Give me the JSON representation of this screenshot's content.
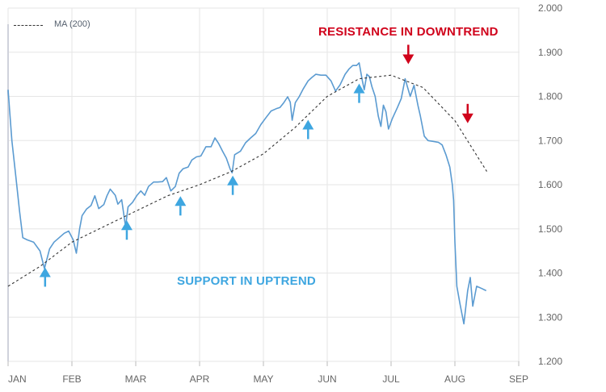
{
  "legend": {
    "ma_label": "MA (200)"
  },
  "annotations": {
    "resistance": "RESISTANCE IN DOWNTREND",
    "support": "SUPPORT IN UPTREND"
  },
  "colors": {
    "price_line": "#5b9bd1",
    "ma_line": "#333333",
    "up_arrow": "#3ea6e0",
    "down_arrow": "#d0021b",
    "grid": "#e6e6e6",
    "support_text": "#3ea6e0",
    "resistance_text": "#d0021b"
  },
  "chart_data": {
    "type": "line",
    "title": "",
    "xlabel": "",
    "ylabel": "",
    "ylim": [
      1.2,
      2.0
    ],
    "yticks": [
      "2.000",
      "1.900",
      "1.800",
      "1.700",
      "1.600",
      "1.500",
      "1.400",
      "1.300",
      "1.200"
    ],
    "grid": true,
    "legend_position": "top-left",
    "x_categories": [
      "JAN",
      "FEB",
      "MAR",
      "APR",
      "MAY",
      "JUN",
      "JUL",
      "AUG",
      "SEP"
    ],
    "series": [
      {
        "name": "",
        "style": "solid",
        "points": [
          [
            0.0,
            1.815
          ],
          [
            0.06,
            1.7
          ],
          [
            0.12,
            1.62
          ],
          [
            0.18,
            1.54
          ],
          [
            0.23,
            1.48
          ],
          [
            0.3,
            1.475
          ],
          [
            0.4,
            1.47
          ],
          [
            0.5,
            1.45
          ],
          [
            0.57,
            1.41
          ],
          [
            0.65,
            1.455
          ],
          [
            0.72,
            1.47
          ],
          [
            0.8,
            1.48
          ],
          [
            0.88,
            1.49
          ],
          [
            0.95,
            1.495
          ],
          [
            1.02,
            1.475
          ],
          [
            1.07,
            1.445
          ],
          [
            1.12,
            1.5
          ],
          [
            1.16,
            1.53
          ],
          [
            1.23,
            1.545
          ],
          [
            1.3,
            1.553
          ],
          [
            1.36,
            1.575
          ],
          [
            1.42,
            1.546
          ],
          [
            1.5,
            1.555
          ],
          [
            1.55,
            1.575
          ],
          [
            1.6,
            1.59
          ],
          [
            1.68,
            1.576
          ],
          [
            1.72,
            1.556
          ],
          [
            1.78,
            1.566
          ],
          [
            1.84,
            1.505
          ],
          [
            1.88,
            1.55
          ],
          [
            1.95,
            1.56
          ],
          [
            2.02,
            1.576
          ],
          [
            2.08,
            1.586
          ],
          [
            2.14,
            1.576
          ],
          [
            2.2,
            1.596
          ],
          [
            2.28,
            1.606
          ],
          [
            2.34,
            1.606
          ],
          [
            2.42,
            1.607
          ],
          [
            2.48,
            1.616
          ],
          [
            2.55,
            1.586
          ],
          [
            2.62,
            1.596
          ],
          [
            2.68,
            1.626
          ],
          [
            2.74,
            1.636
          ],
          [
            2.82,
            1.64
          ],
          [
            2.88,
            1.656
          ],
          [
            2.95,
            1.663
          ],
          [
            3.02,
            1.665
          ],
          [
            3.1,
            1.686
          ],
          [
            3.18,
            1.686
          ],
          [
            3.24,
            1.706
          ],
          [
            3.3,
            1.693
          ],
          [
            3.36,
            1.676
          ],
          [
            3.42,
            1.66
          ],
          [
            3.48,
            1.635
          ],
          [
            3.51,
            1.627
          ],
          [
            3.55,
            1.668
          ],
          [
            3.64,
            1.676
          ],
          [
            3.72,
            1.695
          ],
          [
            3.8,
            1.706
          ],
          [
            3.88,
            1.716
          ],
          [
            3.96,
            1.736
          ],
          [
            4.04,
            1.752
          ],
          [
            4.12,
            1.767
          ],
          [
            4.2,
            1.772
          ],
          [
            4.26,
            1.775
          ],
          [
            4.32,
            1.786
          ],
          [
            4.38,
            1.799
          ],
          [
            4.42,
            1.787
          ],
          [
            4.45,
            1.746
          ],
          [
            4.5,
            1.786
          ],
          [
            4.56,
            1.799
          ],
          [
            4.62,
            1.816
          ],
          [
            4.7,
            1.835
          ],
          [
            4.76,
            1.843
          ],
          [
            4.82,
            1.85
          ],
          [
            4.9,
            1.848
          ],
          [
            4.98,
            1.848
          ],
          [
            5.06,
            1.835
          ],
          [
            5.13,
            1.812
          ],
          [
            5.2,
            1.826
          ],
          [
            5.28,
            1.85
          ],
          [
            5.34,
            1.862
          ],
          [
            5.4,
            1.87
          ],
          [
            5.46,
            1.87
          ],
          [
            5.5,
            1.876
          ],
          [
            5.55,
            1.836
          ],
          [
            5.58,
            1.815
          ],
          [
            5.62,
            1.85
          ],
          [
            5.66,
            1.845
          ],
          [
            5.7,
            1.822
          ],
          [
            5.75,
            1.8
          ],
          [
            5.8,
            1.755
          ],
          [
            5.84,
            1.732
          ],
          [
            5.88,
            1.78
          ],
          [
            5.92,
            1.765
          ],
          [
            5.96,
            1.726
          ],
          [
            6.02,
            1.75
          ],
          [
            6.1,
            1.775
          ],
          [
            6.16,
            1.795
          ],
          [
            6.22,
            1.84
          ],
          [
            6.26,
            1.82
          ],
          [
            6.3,
            1.8
          ],
          [
            6.36,
            1.825
          ],
          [
            6.42,
            1.78
          ],
          [
            6.46,
            1.755
          ],
          [
            6.52,
            1.71
          ],
          [
            6.58,
            1.7
          ],
          [
            6.66,
            1.698
          ],
          [
            6.74,
            1.696
          ],
          [
            6.8,
            1.69
          ],
          [
            6.86,
            1.668
          ],
          [
            6.92,
            1.64
          ],
          [
            6.96,
            1.6
          ],
          [
            6.98,
            1.565
          ],
          [
            7.0,
            1.47
          ],
          [
            7.03,
            1.37
          ],
          [
            7.08,
            1.33
          ],
          [
            7.14,
            1.285
          ],
          [
            7.2,
            1.36
          ],
          [
            7.24,
            1.39
          ],
          [
            7.28,
            1.325
          ],
          [
            7.34,
            1.37
          ],
          [
            7.42,
            1.365
          ],
          [
            7.49,
            1.36
          ]
        ]
      },
      {
        "name": "MA (200)",
        "style": "dashed",
        "points": [
          [
            0.0,
            1.37
          ],
          [
            0.5,
            1.415
          ],
          [
            1.0,
            1.47
          ],
          [
            1.5,
            1.505
          ],
          [
            2.0,
            1.54
          ],
          [
            2.5,
            1.575
          ],
          [
            3.0,
            1.6
          ],
          [
            3.5,
            1.63
          ],
          [
            4.0,
            1.67
          ],
          [
            4.5,
            1.73
          ],
          [
            5.0,
            1.8
          ],
          [
            5.5,
            1.84
          ],
          [
            6.0,
            1.848
          ],
          [
            6.5,
            1.82
          ],
          [
            7.0,
            1.745
          ],
          [
            7.5,
            1.63
          ]
        ]
      }
    ],
    "markers": {
      "support_arrows_x": [
        0.58,
        1.86,
        2.7,
        3.52,
        4.7,
        5.5
      ],
      "resistance_arrows_x": [
        6.27,
        7.2
      ]
    }
  }
}
